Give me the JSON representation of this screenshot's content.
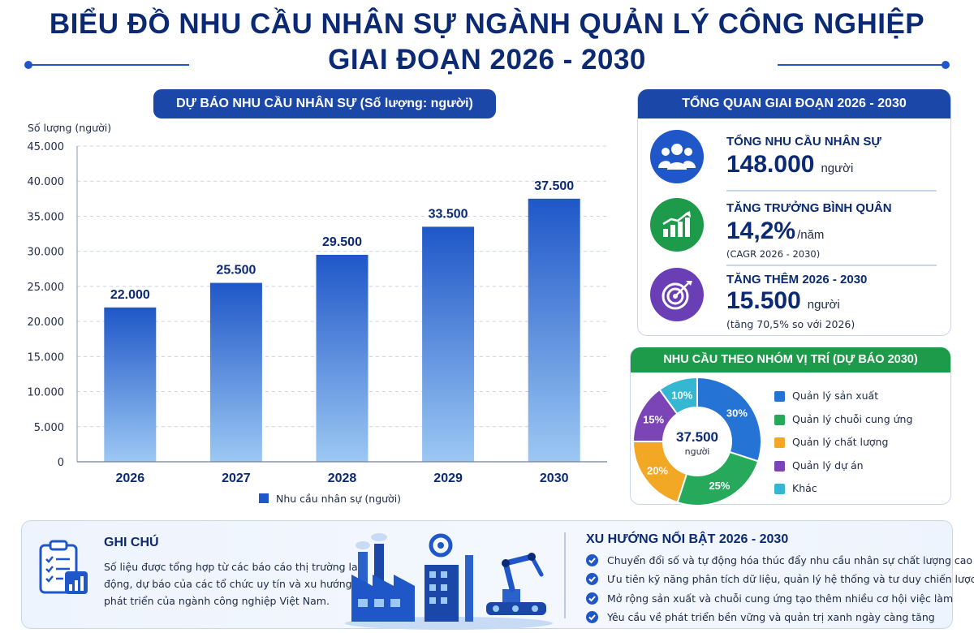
{
  "header": {
    "title_line1": "BIỂU ĐỒ NHU CẦU NHÂN SỰ NGÀNH QUẢN LÝ CÔNG NGHIỆP",
    "title_line2": "GIAI ĐOẠN 2026 - 2030"
  },
  "colors": {
    "navy": "#0b2a73",
    "blue": "#1f57c8",
    "green": "#1e9a4b",
    "purple": "#6a3fb5",
    "bar_top": "#1f57c8",
    "bar_bottom": "#9cc8f3"
  },
  "chart_data": [
    {
      "type": "bar",
      "title": "DỰ BÁO NHU CẦU NHÂN SỰ (Số lượng: người)",
      "ylabel": "Số lượng (người)",
      "xlabel": "",
      "categories": [
        "2026",
        "2027",
        "2028",
        "2029",
        "2030"
      ],
      "series": [
        {
          "name": "Nhu cầu nhân sự (người)",
          "values": [
            22000,
            25500,
            29500,
            33500,
            37500
          ]
        }
      ],
      "value_labels": [
        "22.000",
        "25.500",
        "29.500",
        "33.500",
        "37.500"
      ],
      "ylim": [
        0,
        45000
      ],
      "yticks": [
        0,
        5000,
        10000,
        15000,
        20000,
        25000,
        30000,
        35000,
        40000,
        45000
      ],
      "ytick_labels": [
        "0",
        "5.000",
        "10.000",
        "15.000",
        "20.000",
        "25.000",
        "30.000",
        "35.000",
        "40.000",
        "45.000"
      ],
      "grid": true,
      "legend": "bottom"
    },
    {
      "type": "pie",
      "title": "NHU CẦU THEO NHÓM VỊ TRÍ (DỰ BÁO 2030)",
      "center_value": "37.500",
      "center_unit": "người",
      "categories": [
        "Quản lý sản xuất",
        "Quản lý chuỗi cung ứng",
        "Quản lý chất lượng",
        "Quản lý dự án",
        "Khác"
      ],
      "values": [
        30,
        25,
        20,
        15,
        10
      ],
      "percent_labels": [
        "30%",
        "25%",
        "20%",
        "15%",
        "10%"
      ],
      "counts": [
        "11.250",
        "9.375",
        "7.500",
        "5.625",
        "3.750"
      ],
      "colors": [
        "#2673d6",
        "#26a95a",
        "#f2a825",
        "#7b45b8",
        "#35b6d1"
      ],
      "legend": "right"
    }
  ],
  "overview": {
    "title": "TỔNG QUAN GIAI ĐOẠN 2026 - 2030",
    "kpis": [
      {
        "label": "TỔNG NHU CẦU NHÂN SỰ",
        "value": "148.000",
        "unit": "người",
        "sub": "",
        "icon": "people-icon",
        "color": "#1f57c8"
      },
      {
        "label": "TĂNG TRƯỞNG BÌNH QUÂN",
        "value": "14,2%",
        "unit": "/năm",
        "sub": "(CAGR 2026 - 2030)",
        "icon": "growth-chart-icon",
        "color": "#1e9a4b"
      },
      {
        "label": "TĂNG THÊM 2026 - 2030",
        "value": "15.500",
        "unit": "người",
        "sub": "(tăng 70,5% so với 2026)",
        "icon": "target-icon",
        "color": "#6a3fb5"
      }
    ]
  },
  "notes": {
    "title": "GHI CHÚ",
    "text": "Số liệu được tổng hợp từ các báo cáo thị trường lao động, dự báo của các tổ chức uy tín và xu hướng phát triển của ngành công nghiệp Việt Nam."
  },
  "trends": {
    "title": "XU HƯỚNG NỔI BẬT 2026 - 2030",
    "items": [
      "Chuyển đổi số và tự động hóa thúc đẩy nhu cầu nhân sự chất lượng cao",
      "Ưu tiên kỹ năng phân tích dữ liệu, quản lý hệ thống và tư duy chiến lược",
      "Mở rộng sản xuất và chuỗi cung ứng tạo thêm nhiều cơ hội việc làm",
      "Yêu cầu về phát triển bền vững và quản trị xanh ngày càng tăng"
    ]
  }
}
